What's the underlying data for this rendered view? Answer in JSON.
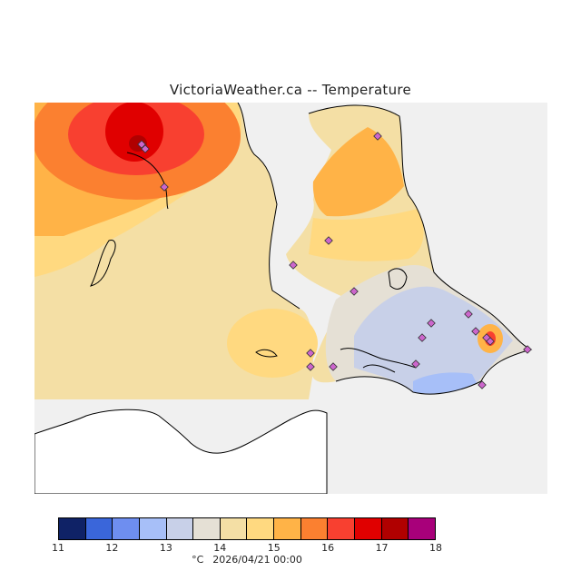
{
  "title": "VictoriaWeather.ca -- Temperature",
  "map": {
    "variable": "Temperature",
    "region": "Victoria, BC area",
    "background_color": "#f0f0f0",
    "land_fill_colors": [
      "#e00000",
      "#f84030",
      "#fb8030",
      "#ffb347",
      "#ffd980",
      "#f4dfa5",
      "#e5e0d5",
      "#c8d0e8",
      "#a7bff8"
    ],
    "station_marker_color": "#cc66cc"
  },
  "legend": {
    "unit": "°C",
    "timestamp": "2026/04/21 00:00",
    "ticks": [
      "11",
      "12",
      "13",
      "14",
      "15",
      "16",
      "17",
      "18"
    ],
    "colors": [
      "#0f2266",
      "#3a66da",
      "#6e8ef0",
      "#a7bff8",
      "#c8d0e8",
      "#e5e0d5",
      "#f4dfa5",
      "#ffd980",
      "#ffb347",
      "#fb8030",
      "#f84030",
      "#e00000",
      "#b00000",
      "#a8007a"
    ]
  }
}
